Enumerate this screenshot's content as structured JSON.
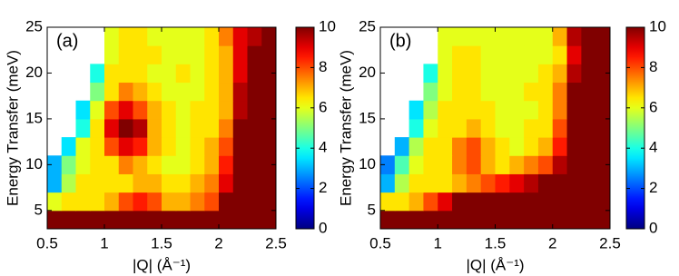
{
  "chart_data": [
    {
      "type": "heatmap",
      "title": "(a)",
      "xlabel": "|Q| (Å⁻¹)",
      "ylabel": "Energy Transfer (meV)",
      "colormap": "jet",
      "zlim": [
        0,
        10
      ],
      "zticks": [
        0,
        2,
        4,
        6,
        8,
        10
      ],
      "xlim": [
        0.5,
        2.5
      ],
      "xticks": [
        0.5,
        1,
        1.5,
        2,
        2.5
      ],
      "ylim": [
        3,
        25
      ],
      "yticks": [
        5,
        10,
        15,
        20,
        25
      ],
      "x": [
        0.5625,
        0.6875,
        0.8125,
        0.9375,
        1.0625,
        1.1875,
        1.3125,
        1.4375,
        1.5625,
        1.6875,
        1.8125,
        1.9375,
        2.0625,
        2.1875,
        2.3125,
        2.4375
      ],
      "y": [
        4,
        6,
        8,
        10,
        12,
        14,
        16,
        18,
        20,
        22,
        24
      ],
      "z": [
        [
          10,
          10,
          10,
          10,
          10,
          10,
          10,
          10,
          10,
          10,
          10,
          10,
          10,
          10,
          10,
          10
        ],
        [
          6,
          6.5,
          6.5,
          6.5,
          7,
          8,
          8.5,
          8,
          7,
          7,
          7.5,
          8,
          10,
          10,
          10,
          10
        ],
        [
          3,
          5.5,
          6.5,
          6.5,
          6.5,
          6.5,
          7,
          7,
          6.5,
          6.5,
          7,
          7.5,
          9,
          10,
          10,
          10
        ],
        [
          3,
          5,
          6,
          6.5,
          6.5,
          7.5,
          7,
          6.5,
          6,
          6,
          6.5,
          7,
          8.5,
          10,
          10,
          10
        ],
        [
          null,
          3.5,
          6,
          6.5,
          8,
          9,
          8.5,
          7,
          6.5,
          6,
          6.5,
          7,
          8,
          10,
          10,
          10
        ],
        [
          null,
          null,
          4,
          6.5,
          9,
          10,
          9.5,
          7,
          6.5,
          6,
          6.5,
          6.5,
          7.5,
          10,
          10,
          10
        ],
        [
          null,
          null,
          3.5,
          6,
          8,
          9,
          8,
          7,
          6.5,
          6,
          6.5,
          6.5,
          7,
          9.5,
          10,
          10
        ],
        [
          null,
          null,
          null,
          5,
          6.5,
          7.5,
          7,
          6.5,
          6,
          6,
          6,
          6.5,
          7,
          9.5,
          10,
          10
        ],
        [
          null,
          null,
          null,
          4,
          6.5,
          6.5,
          6.5,
          6,
          6,
          6.5,
          6,
          6.5,
          7,
          9,
          10,
          10
        ],
        [
          null,
          null,
          null,
          null,
          6,
          6.5,
          6.5,
          6.5,
          6,
          6,
          6,
          6.5,
          7,
          9,
          10,
          10
        ],
        [
          null,
          null,
          null,
          null,
          6,
          6.5,
          6.5,
          6,
          6,
          6,
          6,
          6.5,
          7.5,
          9,
          9.5,
          10
        ]
      ]
    },
    {
      "type": "heatmap",
      "title": "(b)",
      "xlabel": "|Q| (Å⁻¹)",
      "ylabel": "Energy Transfer (meV)",
      "colormap": "jet",
      "zlim": [
        0,
        10
      ],
      "zticks": [
        0,
        2,
        4,
        6,
        8,
        10
      ],
      "xlim": [
        0.5,
        2.5
      ],
      "xticks": [
        0.5,
        1,
        1.5,
        2,
        2.5
      ],
      "ylim": [
        3,
        25
      ],
      "yticks": [
        5,
        10,
        15,
        20,
        25
      ],
      "x": [
        0.5625,
        0.6875,
        0.8125,
        0.9375,
        1.0625,
        1.1875,
        1.3125,
        1.4375,
        1.5625,
        1.6875,
        1.8125,
        1.9375,
        2.0625,
        2.1875,
        2.3125,
        2.4375
      ],
      "y": [
        4,
        6,
        8,
        10,
        12,
        14,
        16,
        18,
        20,
        22,
        24
      ],
      "z": [
        [
          10,
          10,
          10,
          10,
          10,
          10,
          10,
          10,
          10,
          10,
          10,
          10,
          10,
          10,
          10,
          10
        ],
        [
          6.5,
          6.5,
          7,
          8,
          9,
          10,
          10,
          10,
          10,
          10,
          10,
          10,
          10,
          10,
          10,
          10
        ],
        [
          3,
          5.5,
          6.5,
          6.5,
          6.5,
          7,
          7.5,
          8,
          8.5,
          9,
          9.5,
          10,
          10,
          10,
          10,
          10
        ],
        [
          2.5,
          4.5,
          6,
          6.5,
          6.5,
          7.5,
          8,
          7,
          6.5,
          7,
          7.5,
          8,
          9.5,
          10,
          10,
          10
        ],
        [
          null,
          3,
          5.5,
          6.5,
          6.5,
          7.5,
          8,
          7,
          6.5,
          6,
          6.5,
          7,
          8.5,
          10,
          10,
          10
        ],
        [
          null,
          null,
          4,
          6,
          6.5,
          6.5,
          7,
          6.5,
          6,
          6,
          6.5,
          6.5,
          8,
          10,
          10,
          10
        ],
        [
          null,
          null,
          3.5,
          5.5,
          6.5,
          6.5,
          6.5,
          6.5,
          6,
          6,
          6,
          6.5,
          7.5,
          10,
          10,
          10
        ],
        [
          null,
          null,
          null,
          5,
          6,
          6.5,
          6.5,
          6,
          6,
          6,
          6.5,
          6.5,
          7.5,
          10,
          10,
          10
        ],
        [
          null,
          null,
          null,
          4,
          6,
          6.5,
          6.5,
          6,
          6,
          6,
          6,
          6.5,
          7,
          9.5,
          10,
          10
        ],
        [
          null,
          null,
          null,
          null,
          6,
          6.5,
          6.5,
          6,
          6,
          6,
          6,
          6,
          6.5,
          9,
          10,
          10
        ],
        [
          null,
          null,
          null,
          null,
          6,
          6,
          6,
          6,
          6,
          6,
          6,
          6,
          7,
          9.5,
          10,
          10
        ]
      ]
    }
  ]
}
